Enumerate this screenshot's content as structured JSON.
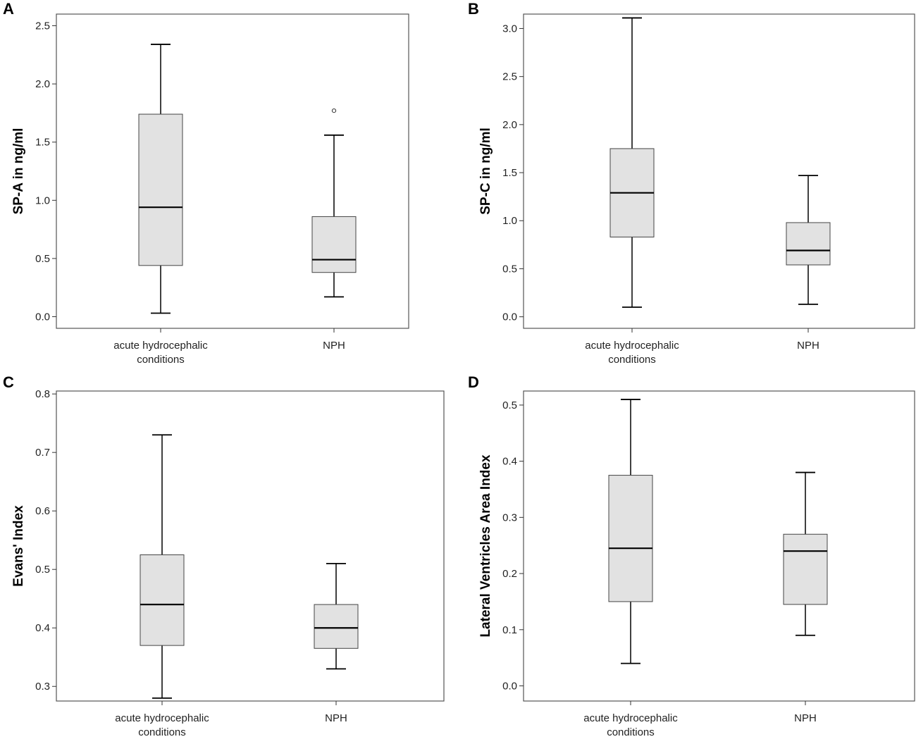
{
  "colors": {
    "box_fill": "#e2e2e2",
    "stroke": "#000000",
    "frame": "#555555"
  },
  "chart_data": [
    {
      "panel": "A",
      "type": "boxplot",
      "ylabel": "SP-A in ng/ml",
      "ylim": [
        -0.1,
        2.6
      ],
      "yticks": [
        0.0,
        0.5,
        1.0,
        1.5,
        2.0,
        2.5
      ],
      "ytick_labels": [
        "0.0",
        "0.5",
        "1.0",
        "1.5",
        "2.0",
        "2.5"
      ],
      "categories": [
        [
          "acute hydrocephalic",
          "conditions"
        ],
        [
          "NPH"
        ]
      ],
      "boxes": [
        {
          "min": 0.03,
          "q1": 0.44,
          "median": 0.94,
          "q3": 1.74,
          "max": 2.34,
          "outliers": []
        },
        {
          "min": 0.17,
          "q1": 0.38,
          "median": 0.49,
          "q3": 0.86,
          "max": 1.56,
          "outliers": [
            1.77
          ]
        }
      ]
    },
    {
      "panel": "B",
      "type": "boxplot",
      "ylabel": "SP-C in ng/ml",
      "ylim": [
        -0.12,
        3.15
      ],
      "yticks": [
        0.0,
        0.5,
        1.0,
        1.5,
        2.0,
        2.5,
        3.0
      ],
      "ytick_labels": [
        "0.0",
        "0.5",
        "1.0",
        "1.5",
        "2.0",
        "2.5",
        "3.0"
      ],
      "categories": [
        [
          "acute hydrocephalic",
          "conditions"
        ],
        [
          "NPH"
        ]
      ],
      "boxes": [
        {
          "min": 0.1,
          "q1": 0.83,
          "median": 1.29,
          "q3": 1.75,
          "max": 3.11,
          "outliers": []
        },
        {
          "min": 0.13,
          "q1": 0.54,
          "median": 0.69,
          "q3": 0.98,
          "max": 1.47,
          "outliers": []
        }
      ]
    },
    {
      "panel": "C",
      "type": "boxplot",
      "ylabel": "Evans' Index",
      "ylim": [
        0.275,
        0.805
      ],
      "yticks": [
        0.3,
        0.4,
        0.5,
        0.6,
        0.7,
        0.8
      ],
      "ytick_labels": [
        "0.3",
        "0.4",
        "0.5",
        "0.6",
        "0.7",
        "0.8"
      ],
      "categories": [
        [
          "acute hydrocephalic",
          "conditions"
        ],
        [
          "NPH"
        ]
      ],
      "boxes": [
        {
          "min": 0.28,
          "q1": 0.37,
          "median": 0.44,
          "q3": 0.525,
          "max": 0.73,
          "outliers": []
        },
        {
          "min": 0.33,
          "q1": 0.365,
          "median": 0.4,
          "q3": 0.44,
          "max": 0.51,
          "outliers": []
        }
      ]
    },
    {
      "panel": "D",
      "type": "boxplot",
      "ylabel": "Lateral Ventricles Area Index",
      "ylim": [
        -0.027,
        0.525
      ],
      "yticks": [
        0.0,
        0.1,
        0.2,
        0.3,
        0.4,
        0.5
      ],
      "ytick_labels": [
        "0.0",
        "0.1",
        "0.2",
        "0.3",
        "0.4",
        "0.5"
      ],
      "categories": [
        [
          "acute hydrocephalic",
          "conditions"
        ],
        [
          "NPH"
        ]
      ],
      "boxes": [
        {
          "min": 0.04,
          "q1": 0.15,
          "median": 0.245,
          "q3": 0.375,
          "max": 0.51,
          "outliers": []
        },
        {
          "min": 0.09,
          "q1": 0.145,
          "median": 0.24,
          "q3": 0.27,
          "max": 0.38,
          "outliers": []
        }
      ]
    }
  ]
}
